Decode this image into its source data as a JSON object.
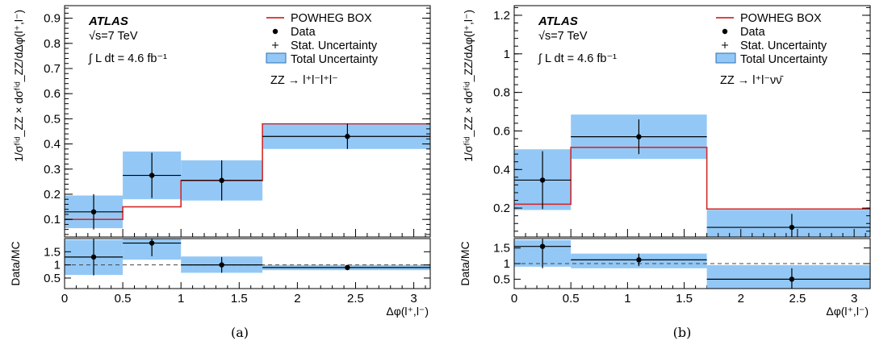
{
  "chart_data": [
    {
      "type": "line",
      "caption": "(a)",
      "atlas_label": "ATLAS",
      "energy_label": "√s=7 TeV",
      "lumi_label": "∫ L dt = 4.6 fb⁻¹",
      "channel": "ZZ → l⁺l⁻l⁺l⁻",
      "xlabel": "Δφ(l⁺,l⁻)",
      "ylabel": "1/σᶠⁱᵈ_ZZ × dσᶠⁱᵈ_ZZ/dΔφ(l⁺,l⁻)",
      "ratio_ylabel": "Data/MC",
      "xlim": [
        0,
        3.14159
      ],
      "ylim": [
        0.03,
        0.95
      ],
      "ratio_ylim": [
        0.1,
        2.0
      ],
      "x_ticks": [
        "0",
        "0.5",
        "1",
        "1.5",
        "2",
        "2.5",
        "3"
      ],
      "y_ticks": [
        "0.1",
        "0.2",
        "0.3",
        "0.4",
        "0.5",
        "0.6",
        "0.7",
        "0.8",
        "0.9"
      ],
      "ratio_y_ticks": [
        "0.5",
        "1",
        "1.5"
      ],
      "legend": [
        "POWHEG BOX",
        "Data",
        "Stat. Uncertainty",
        "Total Uncertainty"
      ],
      "legend_position": "top-right",
      "bins": [
        [
          0,
          0.5
        ],
        [
          0.5,
          1.0
        ],
        [
          1.0,
          1.7
        ],
        [
          1.7,
          3.14159
        ]
      ],
      "series": [
        {
          "name": "POWHEG BOX",
          "values": [
            0.1,
            0.15,
            0.255,
            0.48
          ]
        },
        {
          "name": "Data",
          "x": [
            0.25,
            0.75,
            1.35,
            2.43
          ],
          "values": [
            0.13,
            0.275,
            0.255,
            0.43
          ],
          "stat_err": [
            0.07,
            0.09,
            0.08,
            0.05
          ]
        },
        {
          "name": "Total Uncertainty",
          "low": [
            0.065,
            0.18,
            0.175,
            0.38
          ],
          "high": [
            0.195,
            0.37,
            0.335,
            0.48
          ]
        }
      ],
      "ratio": {
        "values": [
          1.3,
          1.83,
          1.0,
          0.9
        ],
        "stat_err": [
          0.7,
          0.5,
          0.3,
          0.1
        ],
        "band_low": [
          0.62,
          1.2,
          0.7,
          0.8
        ],
        "band_high": [
          1.95,
          2.0,
          1.32,
          1.0
        ]
      }
    },
    {
      "type": "line",
      "caption": "(b)",
      "atlas_label": "ATLAS",
      "energy_label": "√s=7 TeV",
      "lumi_label": "∫ L dt = 4.6 fb⁻¹",
      "channel": "ZZ → l⁺l⁻νν̄",
      "xlabel": "Δφ(l⁺,l⁻)",
      "ylabel": "1/σᶠⁱᵈ_ZZ × dσᶠⁱᵈ_ZZ/dΔφ(l⁺,l⁻)",
      "ratio_ylabel": "Data/MC",
      "xlim": [
        0,
        3.14159
      ],
      "ylim": [
        0.05,
        1.25
      ],
      "ratio_ylim": [
        0.2,
        1.8
      ],
      "x_ticks": [
        "0",
        "0.5",
        "1",
        "1.5",
        "2",
        "2.5",
        "3"
      ],
      "y_ticks": [
        "0.2",
        "0.4",
        "0.6",
        "0.8",
        "1",
        "1.2"
      ],
      "ratio_y_ticks": [
        "0.5",
        "1",
        "1.5"
      ],
      "legend": [
        "POWHEG BOX",
        "Data",
        "Stat. Uncertainty",
        "Total Uncertainty"
      ],
      "legend_position": "top-right",
      "bins": [
        [
          0,
          0.5
        ],
        [
          0.5,
          1.7
        ],
        [
          1.7,
          3.14159
        ]
      ],
      "series": [
        {
          "name": "POWHEG BOX",
          "values": [
            0.22,
            0.515,
            0.195
          ]
        },
        {
          "name": "Data",
          "x": [
            0.25,
            1.1,
            2.45
          ],
          "values": [
            0.345,
            0.57,
            0.1
          ],
          "stat_err": [
            0.15,
            0.09,
            0.07
          ]
        },
        {
          "name": "Total Uncertainty",
          "low": [
            0.19,
            0.455,
            0.05
          ],
          "high": [
            0.505,
            0.685,
            0.19
          ]
        }
      ],
      "ratio": {
        "values": [
          1.55,
          1.12,
          0.5
        ],
        "stat_err": [
          0.7,
          0.2,
          0.35
        ],
        "band_low": [
          0.9,
          0.85,
          0.2
        ],
        "band_high": [
          1.75,
          1.32,
          0.95
        ]
      }
    }
  ]
}
